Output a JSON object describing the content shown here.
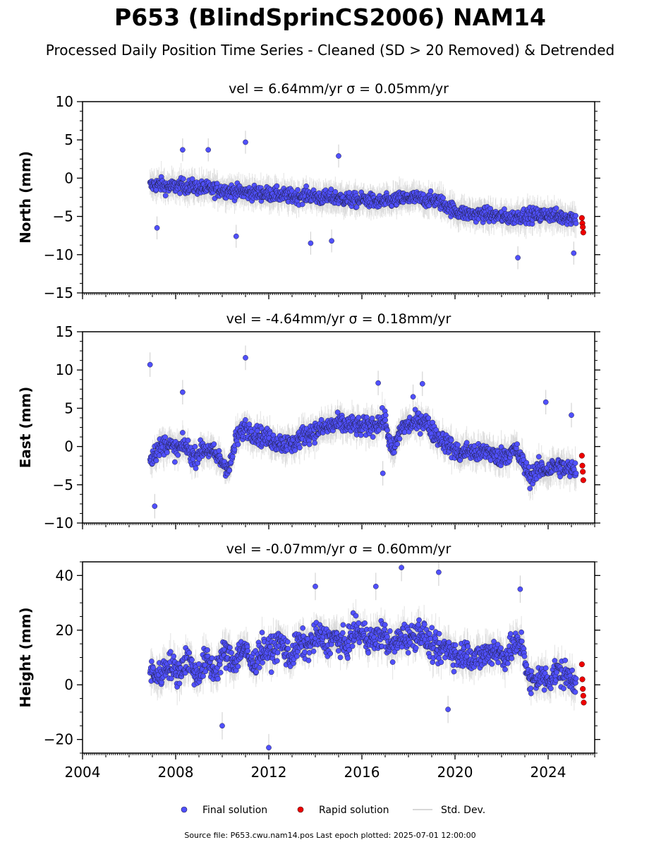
{
  "figure": {
    "title": "P653 (BlindSprinCS2006) NAM14",
    "subtitle": "Processed Daily Position Time Series - Cleaned (SD > 20 Removed) & Detrended",
    "footer": "Source file: P653.cwu.nam14.pos  Last epoch plotted: 2025-07-01 12:00:00"
  },
  "legend": {
    "final_label": "Final solution",
    "rapid_label": "Rapid solution",
    "std_label": "Std. Dev."
  },
  "colors": {
    "final": "#5050ff",
    "rapid": "#ee0000",
    "std": "#cccccc",
    "marker_edge": "#202040"
  },
  "chart_data": [
    {
      "type": "scatter",
      "title": "vel = 6.64mm/yr   σ = 0.05mm/yr",
      "ylabel": "North (mm)",
      "xlim": [
        2004.0,
        2026.0
      ],
      "ylim": [
        -15,
        10
      ],
      "yticks": [
        -15,
        -10,
        -5,
        0,
        5,
        10
      ],
      "yticklabels": [
        "−15",
        "−10",
        "−5",
        "0",
        "5",
        "10"
      ],
      "xticks": [
        2004,
        2008,
        2012,
        2016,
        2020,
        2024
      ],
      "show_xticklabels": false,
      "series": [
        {
          "name": "Final solution",
          "x": [
            2006.9,
            2007.3,
            2007.7,
            2008.2,
            2008.7,
            2009.2,
            2009.7,
            2010.2,
            2010.7,
            2011.2,
            2011.7,
            2012.2,
            2012.7,
            2013.2,
            2013.7,
            2014.2,
            2014.7,
            2015.2,
            2015.7,
            2016.2,
            2016.7,
            2017.2,
            2017.7,
            2018.2,
            2018.7,
            2019.2,
            2019.6,
            2020.0,
            2020.4,
            2020.8,
            2021.2,
            2021.6,
            2022.0,
            2022.4,
            2022.8,
            2023.2,
            2023.6,
            2024.0,
            2024.4,
            2024.8,
            2025.2
          ],
          "y": [
            -1.0,
            -0.8,
            -1.2,
            -1.0,
            -1.1,
            -1.3,
            -1.5,
            -1.6,
            -1.8,
            -1.9,
            -2.0,
            -2.1,
            -2.3,
            -2.4,
            -2.2,
            -2.6,
            -2.5,
            -2.7,
            -2.9,
            -2.8,
            -3.2,
            -3.0,
            -2.7,
            -2.6,
            -2.8,
            -2.9,
            -3.5,
            -4.3,
            -4.6,
            -4.8,
            -4.7,
            -4.9,
            -5.0,
            -5.2,
            -4.9,
            -4.8,
            -4.9,
            -4.7,
            -5.0,
            -5.1,
            -5.2
          ],
          "spread": 1.2,
          "sd": 1.5
        },
        {
          "name": "Rapid solution",
          "x": [
            2025.45,
            2025.47,
            2025.49,
            2025.51
          ],
          "y": [
            -5.2,
            -5.9,
            -6.4,
            -7.1
          ]
        }
      ],
      "outliers": {
        "x": [
          2007.2,
          2008.3,
          2009.4,
          2011.0,
          2015.0,
          2013.8,
          2014.7,
          2022.7,
          2025.1,
          2010.6
        ],
        "y": [
          -6.5,
          3.7,
          3.7,
          4.7,
          2.9,
          -8.5,
          -8.2,
          -10.4,
          -9.8,
          -7.6
        ]
      }
    },
    {
      "type": "scatter",
      "title": "vel = -4.64mm/yr   σ = 0.18mm/yr",
      "ylabel": "East (mm)",
      "xlim": [
        2004.0,
        2026.0
      ],
      "ylim": [
        -10,
        15
      ],
      "yticks": [
        -10,
        -5,
        0,
        5,
        10,
        15
      ],
      "yticklabels": [
        "−10",
        "−5",
        "0",
        "5",
        "10",
        "15"
      ],
      "xticks": [
        2004,
        2008,
        2012,
        2016,
        2020,
        2024
      ],
      "show_xticklabels": false,
      "series": [
        {
          "name": "Final solution",
          "x": [
            2006.9,
            2007.2,
            2007.6,
            2008.0,
            2008.4,
            2008.8,
            2009.2,
            2009.6,
            2010.0,
            2010.3,
            2010.6,
            2011.0,
            2011.5,
            2012.0,
            2012.5,
            2013.0,
            2013.5,
            2014.0,
            2014.5,
            2015.0,
            2015.5,
            2016.0,
            2016.5,
            2017.0,
            2017.3,
            2017.7,
            2018.2,
            2018.7,
            2019.0,
            2019.4,
            2019.8,
            2020.2,
            2020.6,
            2021.0,
            2021.4,
            2021.8,
            2022.2,
            2022.6,
            2022.9,
            2023.2,
            2023.6,
            2024.0,
            2024.4,
            2024.8,
            2025.2
          ],
          "y": [
            -1.5,
            -0.5,
            0.5,
            -0.5,
            0.2,
            -1.5,
            -0.2,
            -0.8,
            -2.0,
            -3.0,
            1.0,
            2.5,
            1.5,
            1.0,
            0.5,
            0.2,
            1.5,
            2.0,
            2.5,
            3.0,
            2.8,
            2.5,
            2.8,
            3.5,
            -1.0,
            2.5,
            3.0,
            3.5,
            2.0,
            1.0,
            0.0,
            -1.0,
            -0.5,
            -1.0,
            -0.5,
            -1.5,
            -1.0,
            -0.5,
            -2.0,
            -4.0,
            -3.0,
            -3.0,
            -2.5,
            -3.0,
            -3.0
          ],
          "spread": 1.6,
          "sd": 1.6
        },
        {
          "name": "Rapid solution",
          "x": [
            2025.45,
            2025.47,
            2025.49,
            2025.51
          ],
          "y": [
            -1.2,
            -2.5,
            -3.3,
            -4.4
          ]
        }
      ],
      "outliers": {
        "x": [
          2006.9,
          2011.0,
          2008.3,
          2016.7,
          2018.6,
          2023.9,
          2007.1,
          2025.0,
          2016.9,
          2018.2
        ],
        "y": [
          10.7,
          11.6,
          7.1,
          8.3,
          8.2,
          5.8,
          -7.8,
          4.1,
          -3.5,
          6.5
        ]
      }
    },
    {
      "type": "scatter",
      "title": "vel = -0.07mm/yr   σ = 0.60mm/yr",
      "ylabel": "Height (mm)",
      "xlim": [
        2004.0,
        2026.0
      ],
      "ylim": [
        -25,
        45
      ],
      "yticks": [
        -20,
        0,
        20,
        40
      ],
      "yticklabels": [
        "−20",
        "0",
        "20",
        "40"
      ],
      "xticks": [
        2004,
        2008,
        2012,
        2016,
        2020,
        2024
      ],
      "xticklabels": [
        "2004",
        "2008",
        "2012",
        "2016",
        "2020",
        "2024"
      ],
      "show_xticklabels": true,
      "series": [
        {
          "name": "Final solution",
          "x": [
            2006.9,
            2007.3,
            2007.7,
            2008.1,
            2008.5,
            2008.9,
            2009.3,
            2009.7,
            2010.1,
            2010.5,
            2010.9,
            2011.3,
            2011.7,
            2012.1,
            2012.5,
            2012.9,
            2013.3,
            2013.7,
            2014.1,
            2014.5,
            2014.9,
            2015.3,
            2015.7,
            2016.1,
            2016.5,
            2016.9,
            2017.3,
            2017.7,
            2018.1,
            2018.5,
            2018.9,
            2019.3,
            2019.7,
            2020.1,
            2020.5,
            2020.9,
            2021.3,
            2021.7,
            2022.1,
            2022.5,
            2022.9,
            2023.2,
            2023.6,
            2024.0,
            2024.4,
            2024.8,
            2025.2
          ],
          "y": [
            5.0,
            3.0,
            8.0,
            4.0,
            10.0,
            3.0,
            9.0,
            5.0,
            12.0,
            8.0,
            14.0,
            7.0,
            13.0,
            12.0,
            16.0,
            10.0,
            15.0,
            14.0,
            18.0,
            16.0,
            17.0,
            14.0,
            20.0,
            18.0,
            16.0,
            19.0,
            13.0,
            18.0,
            17.0,
            20.0,
            15.0,
            12.0,
            14.0,
            10.0,
            12.0,
            9.0,
            11.0,
            13.0,
            10.0,
            14.0,
            15.0,
            0.0,
            3.0,
            2.0,
            5.0,
            3.0,
            2.0
          ],
          "spread": 6.5,
          "sd": 5.0
        },
        {
          "name": "Rapid solution",
          "x": [
            2025.45,
            2025.47,
            2025.49,
            2025.51,
            2025.53
          ],
          "y": [
            7.5,
            2.0,
            -1.5,
            -4.0,
            -6.5
          ]
        }
      ],
      "outliers": {
        "x": [
          2012.0,
          2017.7,
          2019.3,
          2010.0,
          2016.6,
          2019.7,
          2022.8,
          2014.0
        ],
        "y": [
          -23.0,
          42.9,
          41.2,
          -15.0,
          36.0,
          -9.0,
          35.0,
          36.0
        ]
      }
    }
  ]
}
